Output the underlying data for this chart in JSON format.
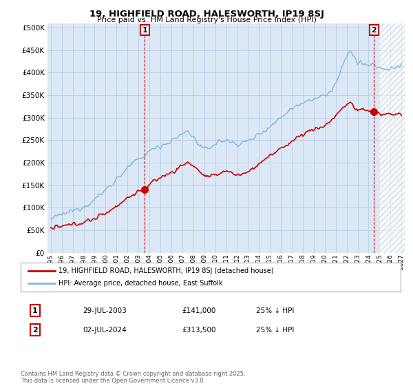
{
  "title": "19, HIGHFIELD ROAD, HALESWORTH, IP19 8SJ",
  "subtitle": "Price paid vs. HM Land Registry's House Price Index (HPI)",
  "legend_line1": "19, HIGHFIELD ROAD, HALESWORTH, IP19 8SJ (detached house)",
  "legend_line2": "HPI: Average price, detached house, East Suffolk",
  "footnote": "Contains HM Land Registry data © Crown copyright and database right 2025.\nThis data is licensed under the Open Government Licence v3.0.",
  "annotation1": {
    "label": "1",
    "date": "29-JUL-2003",
    "price": "£141,000",
    "pct": "25% ↓ HPI"
  },
  "annotation2": {
    "label": "2",
    "date": "02-JUL-2024",
    "price": "£313,500",
    "pct": "25% ↓ HPI"
  },
  "sale1_x": 2003.57,
  "sale1_y": 141000,
  "sale2_x": 2024.5,
  "sale2_y": 313500,
  "hpi_color": "#7ab8e8",
  "price_color": "#cc0000",
  "background_color": "#dce8f5",
  "grid_color": "#b8cce4",
  "ylim": [
    0,
    510000
  ],
  "xlim": [
    1994.7,
    2027.3
  ],
  "yticks": [
    0,
    50000,
    100000,
    150000,
    200000,
    250000,
    300000,
    350000,
    400000,
    450000,
    500000
  ],
  "xticks": [
    1995,
    1996,
    1997,
    1998,
    1999,
    2000,
    2001,
    2002,
    2003,
    2004,
    2005,
    2006,
    2007,
    2008,
    2009,
    2010,
    2011,
    2012,
    2013,
    2014,
    2015,
    2016,
    2017,
    2018,
    2019,
    2020,
    2021,
    2022,
    2023,
    2024,
    2025,
    2026,
    2027
  ]
}
